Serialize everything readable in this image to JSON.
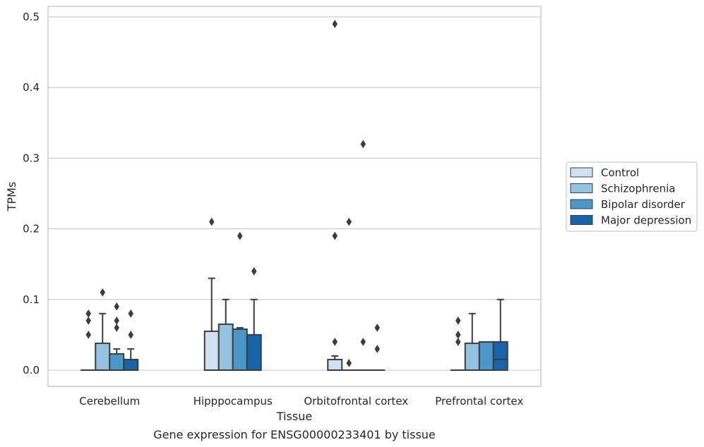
{
  "chart_data": {
    "type": "box",
    "caption": "Gene expression for ENSG00000233401 by tissue",
    "xlabel": "Tissue",
    "ylabel": "TPMs",
    "ylim": [
      -0.023,
      0.515
    ],
    "yticks": [
      "0.0",
      "0.1",
      "0.2",
      "0.3",
      "0.4",
      "0.5"
    ],
    "ytick_values": [
      0,
      0.1,
      0.2,
      0.3,
      0.4,
      0.5
    ],
    "grid": true,
    "legend_placement": "center-right",
    "categories": [
      "Cerebellum",
      "Hipppocampus",
      "Orbitofrontal cortex",
      "Prefrontal cortex"
    ],
    "series": [
      {
        "name": "Control",
        "color": "#d0e1f2",
        "boxes": [
          {
            "q1": 0,
            "median": 0,
            "q3": 0,
            "whisker_low": 0,
            "whisker_high": 0,
            "outliers": [
              0.05,
              0.07,
              0.08
            ]
          },
          {
            "q1": 0,
            "median": 0,
            "q3": 0.055,
            "whisker_low": 0,
            "whisker_high": 0.13,
            "outliers": [
              0.21
            ]
          },
          {
            "q1": 0,
            "median": 0,
            "q3": 0.015,
            "whisker_low": 0,
            "whisker_high": 0.02,
            "outliers": [
              0.04,
              0.19,
              0.49
            ]
          },
          {
            "q1": 0,
            "median": 0,
            "q3": 0,
            "whisker_low": 0,
            "whisker_high": 0,
            "outliers": [
              0.04,
              0.05,
              0.07
            ]
          }
        ]
      },
      {
        "name": "Schizophrenia",
        "color": "#94c4df",
        "boxes": [
          {
            "q1": 0,
            "median": 0,
            "q3": 0.038,
            "whisker_low": 0,
            "whisker_high": 0.08,
            "outliers": [
              0.11
            ]
          },
          {
            "q1": 0,
            "median": 0,
            "q3": 0.065,
            "whisker_low": 0,
            "whisker_high": 0.1,
            "outliers": []
          },
          {
            "q1": 0,
            "median": 0,
            "q3": 0,
            "whisker_low": 0,
            "whisker_high": 0,
            "outliers": [
              0.01,
              0.21
            ]
          },
          {
            "q1": 0,
            "median": 0,
            "q3": 0.038,
            "whisker_low": 0,
            "whisker_high": 0.08,
            "outliers": []
          }
        ]
      },
      {
        "name": "Bipolar disorder",
        "color": "#4a98c9",
        "boxes": [
          {
            "q1": 0,
            "median": 0,
            "q3": 0.023,
            "whisker_low": 0,
            "whisker_high": 0.03,
            "outliers": [
              0.06,
              0.07,
              0.09
            ]
          },
          {
            "q1": 0,
            "median": 0,
            "q3": 0.058,
            "whisker_low": 0,
            "whisker_high": 0.06,
            "outliers": [
              0.19
            ]
          },
          {
            "q1": 0,
            "median": 0,
            "q3": 0,
            "whisker_low": 0,
            "whisker_high": 0,
            "outliers": [
              0.04,
              0.32
            ]
          },
          {
            "q1": 0,
            "median": 0,
            "q3": 0.04,
            "whisker_low": 0,
            "whisker_high": 0.04,
            "outliers": []
          }
        ]
      },
      {
        "name": "Major depression",
        "color": "#1764ab",
        "boxes": [
          {
            "q1": 0,
            "median": 0,
            "q3": 0.015,
            "whisker_low": 0,
            "whisker_high": 0.03,
            "outliers": [
              0.05,
              0.08
            ]
          },
          {
            "q1": 0,
            "median": 0,
            "q3": 0.05,
            "whisker_low": 0,
            "whisker_high": 0.1,
            "outliers": [
              0.14
            ]
          },
          {
            "q1": 0,
            "median": 0,
            "q3": 0,
            "whisker_low": 0,
            "whisker_high": 0,
            "outliers": [
              0.03,
              0.06
            ]
          },
          {
            "q1": 0,
            "median": 0.015,
            "q3": 0.04,
            "whisker_low": 0,
            "whisker_high": 0.1,
            "outliers": []
          }
        ]
      }
    ]
  }
}
